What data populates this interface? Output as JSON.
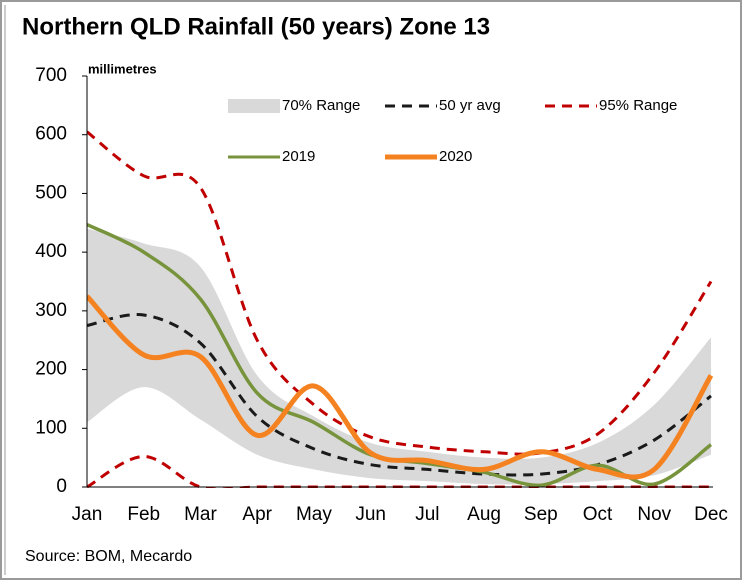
{
  "chart_data": {
    "type": "line",
    "title": "Northern QLD Rainfall (50 years) Zone 13",
    "ylabel": "millimetres",
    "source": "Source: BOM, Mecardo",
    "categories": [
      "Jan",
      "Feb",
      "Mar",
      "Apr",
      "May",
      "Jun",
      "Jul",
      "Aug",
      "Sep",
      "Oct",
      "Nov",
      "Dec"
    ],
    "ylim": [
      0,
      700
    ],
    "yticks": [
      0,
      100,
      200,
      300,
      400,
      500,
      600,
      700
    ],
    "grid": false,
    "series": [
      {
        "name": "70% Range",
        "type": "band",
        "color": "#d9d9d9",
        "upper": [
          440,
          415,
          375,
          190,
          120,
          75,
          60,
          50,
          50,
          75,
          140,
          255
        ],
        "lower": [
          110,
          170,
          115,
          55,
          30,
          15,
          10,
          5,
          5,
          10,
          20,
          55
        ]
      },
      {
        "name": "50 yr avg",
        "color": "#1a1a1a",
        "dashed": true,
        "values": [
          275,
          293,
          245,
          120,
          65,
          38,
          30,
          22,
          22,
          38,
          80,
          155
        ]
      },
      {
        "name": "95% Range",
        "type": "band-lines",
        "color": "#c00000",
        "dashed": true,
        "upper": [
          605,
          530,
          510,
          250,
          140,
          85,
          68,
          60,
          58,
          90,
          195,
          350
        ],
        "lower": [
          0,
          52,
          0,
          0,
          0,
          0,
          0,
          0,
          0,
          0,
          0,
          0
        ]
      },
      {
        "name": "2019",
        "color": "#77933c",
        "dashed": false,
        "values": [
          447,
          400,
          320,
          160,
          110,
          55,
          40,
          25,
          3,
          37,
          5,
          72
        ]
      },
      {
        "name": "2020",
        "color": "#f58220",
        "dashed": false,
        "values": [
          325,
          225,
          222,
          88,
          172,
          58,
          45,
          30,
          60,
          30,
          30,
          190
        ]
      }
    ]
  }
}
